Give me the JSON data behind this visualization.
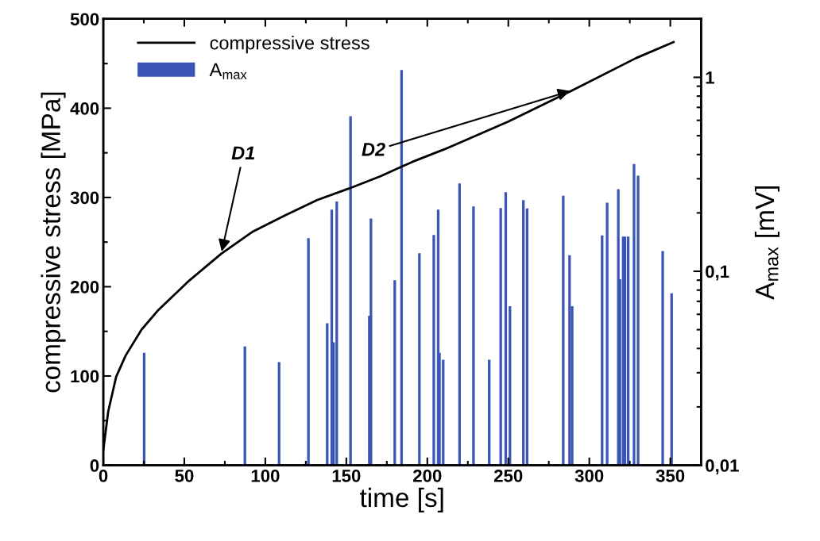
{
  "chart_data": {
    "type": "line",
    "xlabel": "time [s]",
    "ylabel": "compressive stress [MPa]",
    "y2label": "A$_{max}$ [mV]",
    "xlim": [
      0,
      369
    ],
    "xticks": [
      0,
      50,
      100,
      150,
      200,
      250,
      300,
      350
    ],
    "ylim": [
      0,
      500
    ],
    "yticks": [
      0,
      100,
      200,
      300,
      400,
      500
    ],
    "y2lim": [
      0.01,
      2
    ],
    "y2ticks": [
      {
        "value": 0.01,
        "label": "0,01"
      },
      {
        "value": 0.1,
        "label": "0,1"
      },
      {
        "value": 1,
        "label": "1"
      }
    ],
    "log": "y2",
    "legend": "top left",
    "grid": false,
    "series": [
      {
        "name": "compressive stress",
        "color": "#000000",
        "x": [
          0,
          3,
          7.9,
          13.8,
          23.6,
          33.5,
          53.1,
          72.8,
          92.5,
          112.2,
          131.9,
          151.6,
          171.3,
          190.9,
          210.6,
          250,
          289.4,
          328.7,
          352
        ],
        "values": [
          17,
          60,
          99,
          123,
          152,
          173,
          207,
          237,
          262,
          280,
          297,
          310,
          324,
          340,
          354,
          385,
          420,
          456,
          474
        ]
      },
      {
        "name": "A$_{max}$",
        "type": "bar",
        "axis": "y2",
        "color": "#3a55b4",
        "x": [
          25.2,
          87.4,
          108.5,
          126.6,
          138.2,
          141,
          142.1,
          144.1,
          152.6,
          164.2,
          165.2,
          179.9,
          184.1,
          195.1,
          204,
          206.7,
          207.5,
          209.8,
          219.9,
          228.5,
          238.2,
          245.3,
          248.4,
          251,
          259.3,
          261.6,
          283.9,
          287.8,
          289.4,
          307.9,
          311,
          317.9,
          318.9,
          320.9,
          322,
          324,
          327.6,
          330.1,
          345.3,
          350.8
        ],
        "values": [
          0.038,
          0.041,
          0.034,
          0.148,
          0.054,
          0.208,
          0.043,
          0.229,
          0.63,
          0.059,
          0.187,
          0.09,
          1.09,
          0.124,
          0.154,
          0.208,
          0.038,
          0.035,
          0.284,
          0.216,
          0.035,
          0.212,
          0.256,
          0.066,
          0.233,
          0.211,
          0.245,
          0.121,
          0.066,
          0.153,
          0.226,
          0.265,
          0.091,
          0.151,
          0.151,
          0.151,
          0.357,
          0.311,
          0.127,
          0.077
        ]
      }
    ],
    "annotations": [
      {
        "text": "D1",
        "x": 72.8,
        "y": 237
      },
      {
        "text": "D2",
        "x": 289.4,
        "y": 420
      }
    ]
  }
}
